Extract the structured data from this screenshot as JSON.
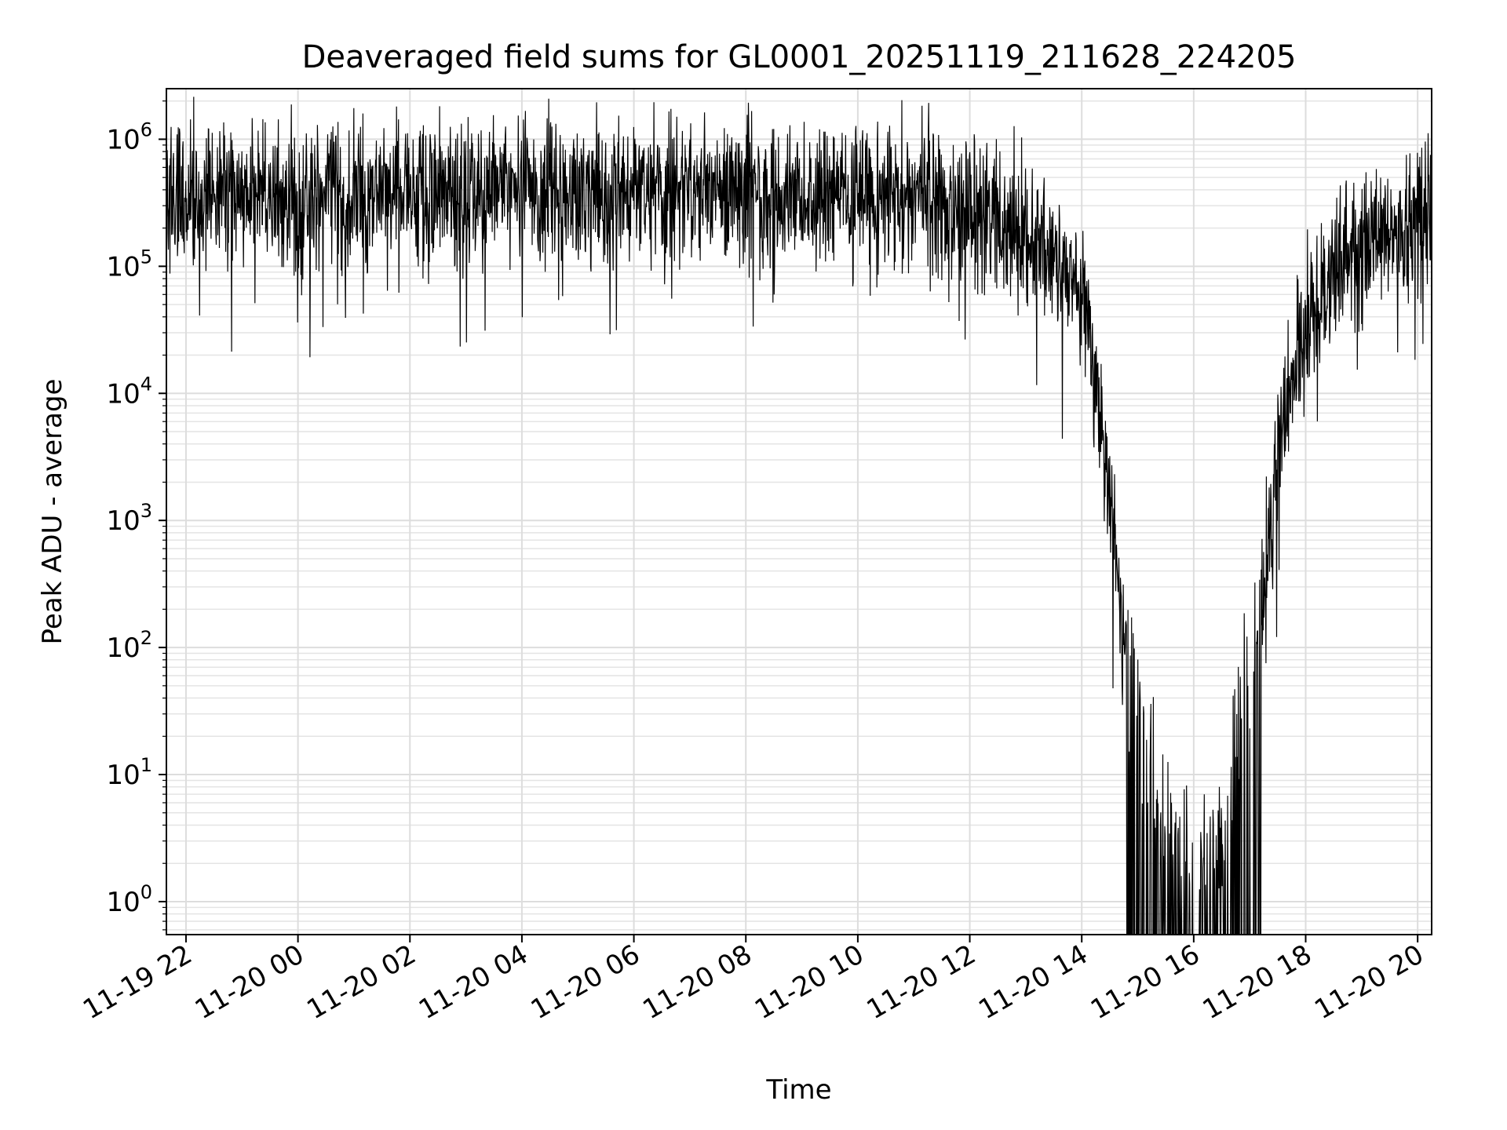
{
  "chart_data": {
    "type": "line",
    "title": "Deaveraged field sums for GL0001_20251119_211628_224205",
    "xlabel": "Time",
    "ylabel": "Peak ADU - average",
    "yscale": "log",
    "ylim": [
      0.55,
      2500000
    ],
    "xlim_hours": [
      -2.35,
      20.25
    ],
    "grid": true,
    "x_ticks": [
      {
        "hours": -2,
        "label": "11-19 22"
      },
      {
        "hours": 0,
        "label": "11-20 00"
      },
      {
        "hours": 2,
        "label": "11-20 02"
      },
      {
        "hours": 4,
        "label": "11-20 04"
      },
      {
        "hours": 6,
        "label": "11-20 06"
      },
      {
        "hours": 8,
        "label": "11-20 08"
      },
      {
        "hours": 10,
        "label": "11-20 10"
      },
      {
        "hours": 12,
        "label": "11-20 12"
      },
      {
        "hours": 14,
        "label": "11-20 14"
      },
      {
        "hours": 16,
        "label": "11-20 16"
      },
      {
        "hours": 18,
        "label": "11-20 18"
      },
      {
        "hours": 20,
        "label": "11-20 20"
      }
    ],
    "y_ticks": [
      {
        "value": 1,
        "base": "10",
        "exp": "0"
      },
      {
        "value": 10,
        "base": "10",
        "exp": "1"
      },
      {
        "value": 100,
        "base": "10",
        "exp": "2"
      },
      {
        "value": 1000,
        "base": "10",
        "exp": "3"
      },
      {
        "value": 10000,
        "base": "10",
        "exp": "4"
      },
      {
        "value": 100000,
        "base": "10",
        "exp": "5"
      },
      {
        "value": 1000000,
        "base": "10",
        "exp": "6"
      }
    ],
    "series": [
      {
        "name": "field sums",
        "color": "#000000",
        "noise_decades": 0.28,
        "envelope": [
          {
            "hours": -2.35,
            "value": 350000
          },
          {
            "hours": 4.0,
            "value": 400000
          },
          {
            "hours": 8.0,
            "value": 390000
          },
          {
            "hours": 11.5,
            "value": 340000
          },
          {
            "hours": 12.5,
            "value": 230000
          },
          {
            "hours": 13.5,
            "value": 130000
          },
          {
            "hours": 14.0,
            "value": 60000
          },
          {
            "hours": 14.2,
            "value": 20000
          },
          {
            "hours": 14.5,
            "value": 1500
          },
          {
            "hours": 14.7,
            "value": 200
          },
          {
            "hours": 15.0,
            "value": 30
          },
          {
            "hours": 15.5,
            "value": 5
          },
          {
            "hours": 16.5,
            "value": 3
          },
          {
            "hours": 17.0,
            "value": 100
          },
          {
            "hours": 17.3,
            "value": 600
          },
          {
            "hours": 17.6,
            "value": 5000
          },
          {
            "hours": 17.8,
            "value": 20000
          },
          {
            "hours": 18.3,
            "value": 80000
          },
          {
            "hours": 19.0,
            "value": 150000
          },
          {
            "hours": 20.25,
            "value": 250000
          }
        ]
      }
    ]
  }
}
